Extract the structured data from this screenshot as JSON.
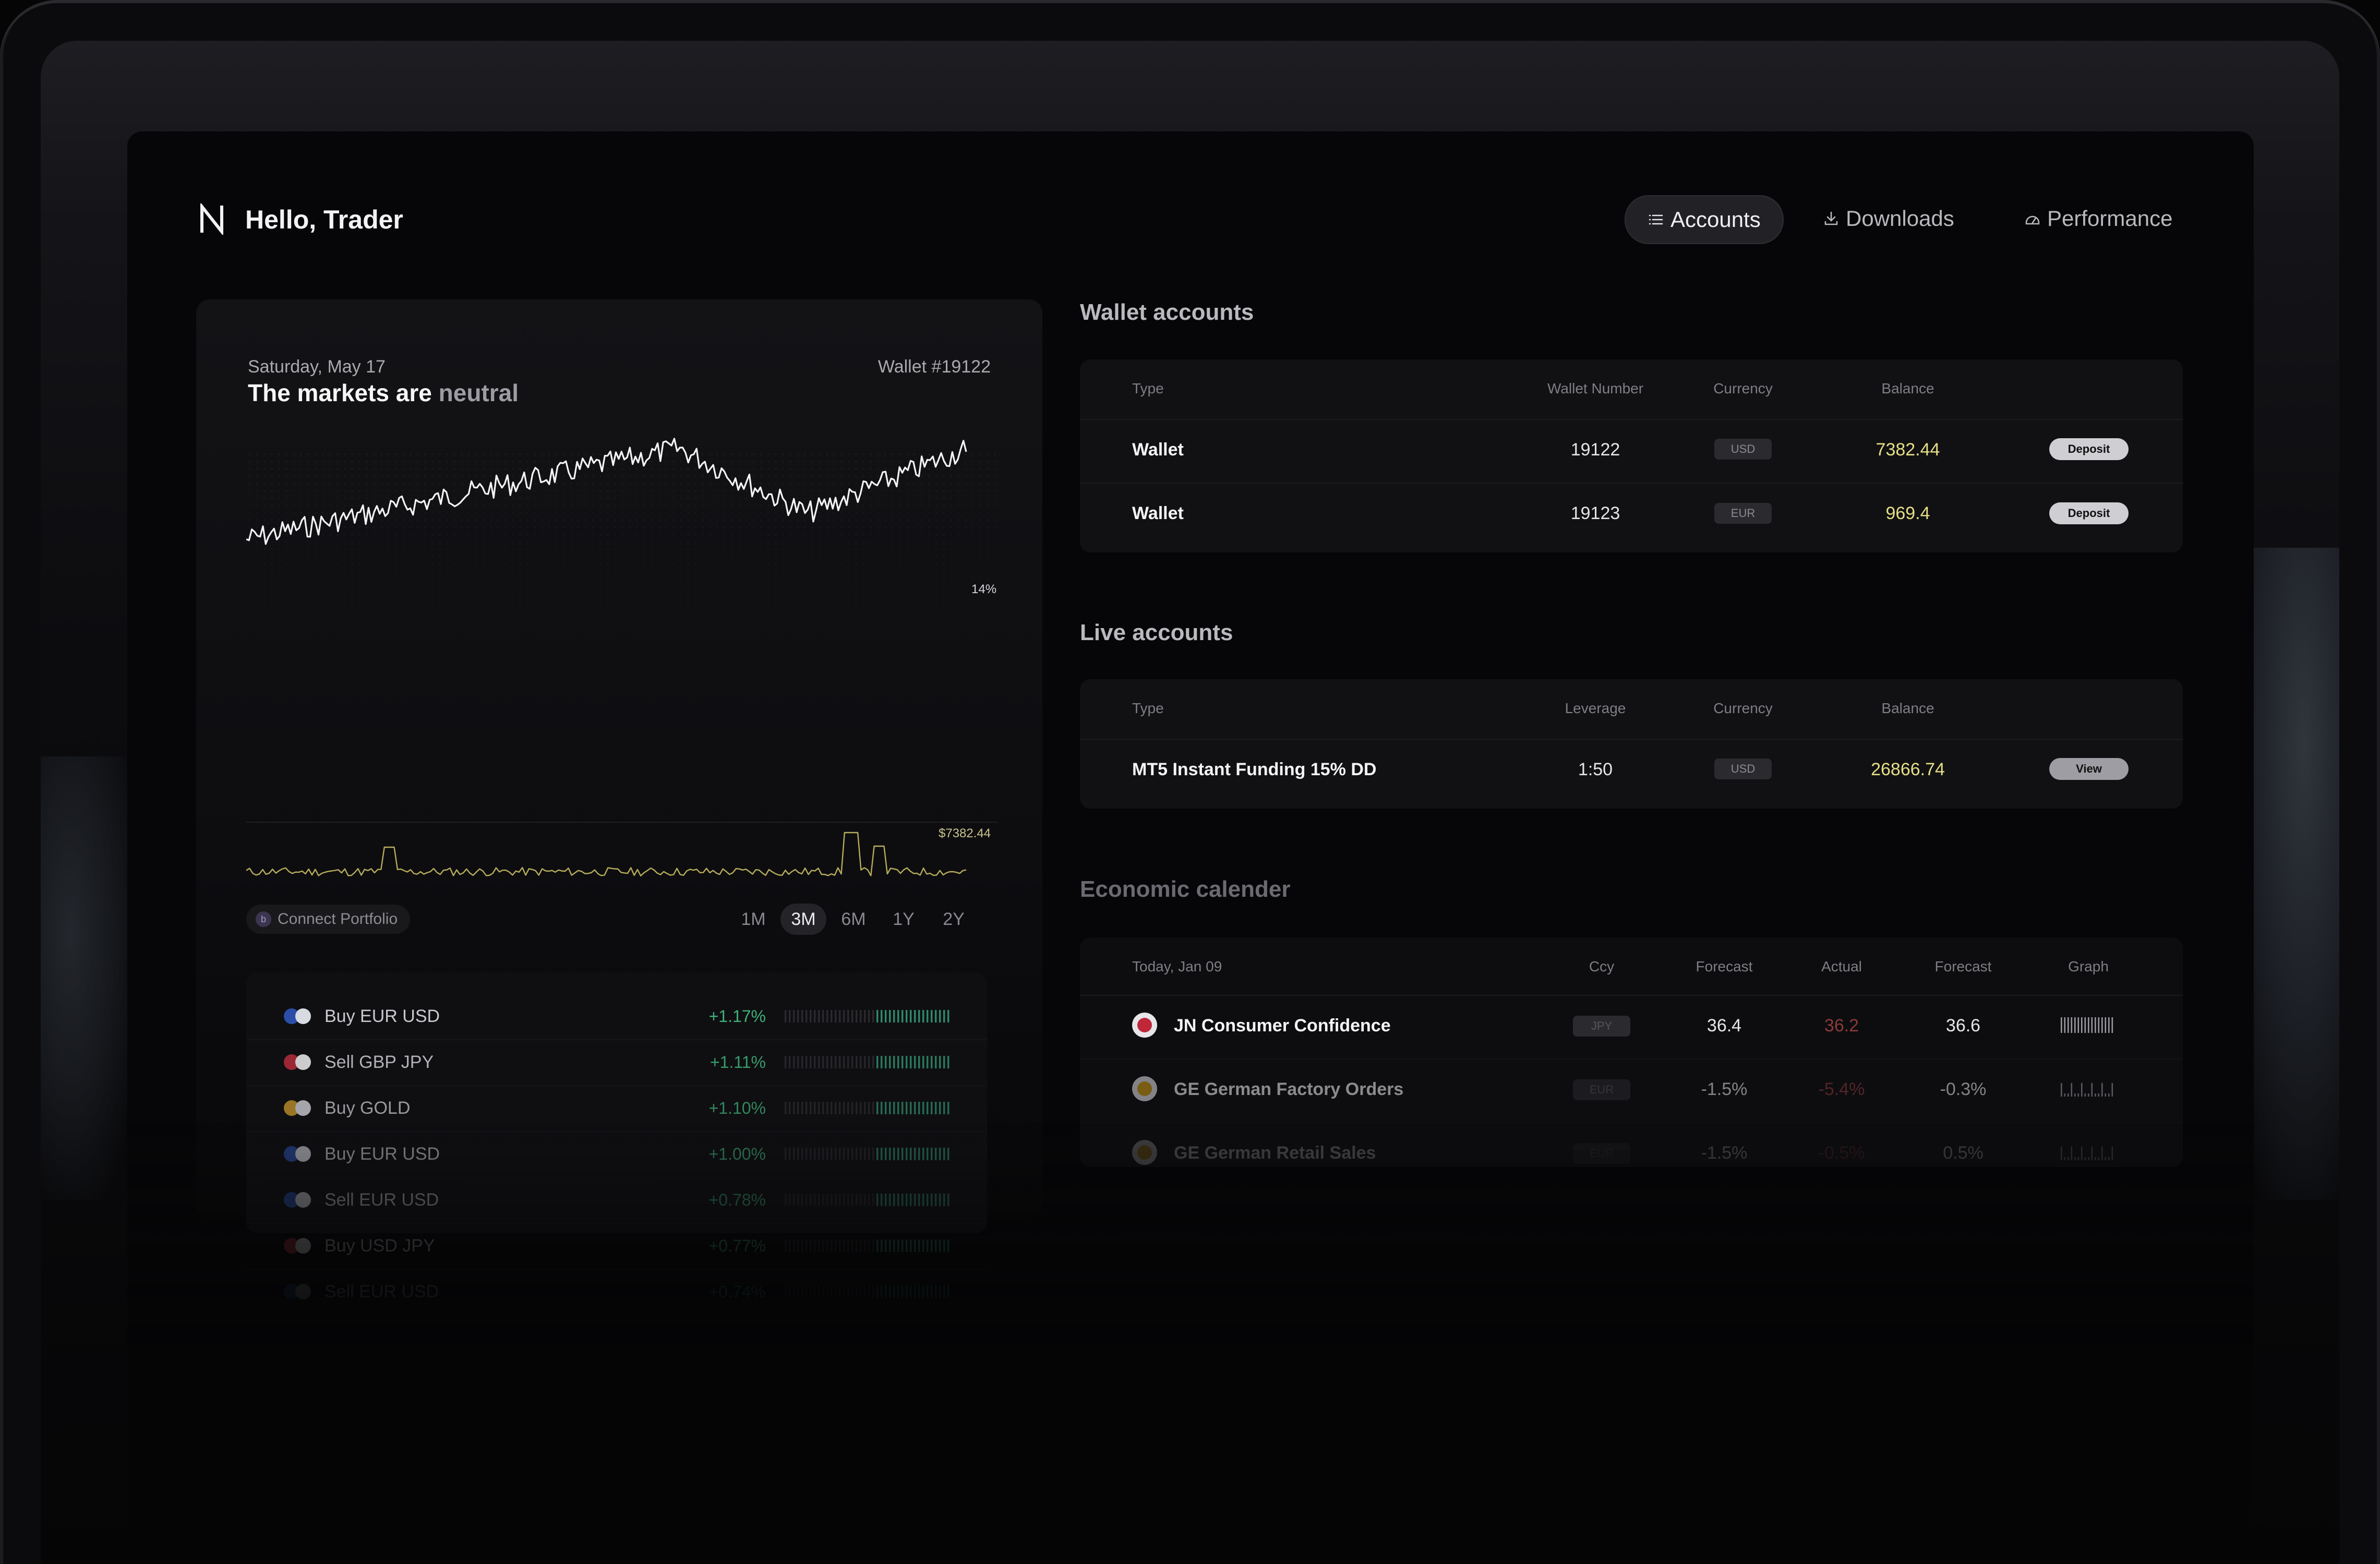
{
  "greeting": "Hello, Trader",
  "nav": [
    {
      "label": "Accounts",
      "icon": "list-icon",
      "active": true
    },
    {
      "label": "Downloads",
      "icon": "download-icon",
      "active": false
    },
    {
      "label": "Performance",
      "icon": "gauge-icon",
      "active": false
    }
  ],
  "overview": {
    "date": "Saturday, May 17",
    "wallet_id": "Wallet #19122",
    "market_prefix": "The markets are",
    "market_state": "neutral",
    "change_label": "14%",
    "volume_label": "$7382.44",
    "connect_label": "Connect Portfolio",
    "connect_icon": "portfolio-icon",
    "periods": [
      "1M",
      "3M",
      "6M",
      "1Y",
      "2Y"
    ],
    "active_period": "3M"
  },
  "signals": [
    {
      "name": "Buy EUR USD",
      "pct": "+1.17%",
      "flag_a": "#2b4fa8",
      "flag_b": "#d9dbe2"
    },
    {
      "name": "Sell GBP JPY",
      "pct": "+1.11%",
      "flag_a": "#b22b3a",
      "flag_b": "#e8e8ea"
    },
    {
      "name": "Buy GOLD",
      "pct": "+1.10%",
      "flag_a": "#c9992c",
      "flag_b": "#d9dbe2"
    },
    {
      "name": "Buy EUR USD",
      "pct": "+1.00%",
      "flag_a": "#2b4fa8",
      "flag_b": "#d9dbe2"
    },
    {
      "name": "Sell EUR USD",
      "pct": "+0.78%",
      "flag_a": "#2b4fa8",
      "flag_b": "#d9dbe2"
    },
    {
      "name": "Buy USD JPY",
      "pct": "+0.77%",
      "flag_a": "#b22b3a",
      "flag_b": "#e8e8ea"
    },
    {
      "name": "Sell EUR USD",
      "pct": "+0.74%",
      "flag_a": "#2b4fa8",
      "flag_b": "#d9dbe2"
    }
  ],
  "wallet_accounts": {
    "title": "Wallet accounts",
    "headers": [
      "Type",
      "Wallet Number",
      "Currency",
      "Balance"
    ],
    "rows": [
      {
        "type": "Wallet",
        "number": "19122",
        "currency": "USD",
        "balance": "7382.44",
        "action": "Deposit"
      },
      {
        "type": "Wallet",
        "number": "19123",
        "currency": "EUR",
        "balance": "969.4",
        "action": "Deposit"
      }
    ]
  },
  "live_accounts": {
    "title": "Live accounts",
    "headers": [
      "Type",
      "Leverage",
      "Currency",
      "Balance"
    ],
    "rows": [
      {
        "type": "MT5 Instant Funding 15% DD",
        "leverage": "1:50",
        "currency": "USD",
        "balance": "26866.74",
        "action": "View"
      }
    ]
  },
  "calendar": {
    "title": "Economic calender",
    "headers": [
      "Today, Jan 09",
      "Ccy",
      "Forecast",
      "Actual",
      "Forecast",
      "Graph"
    ],
    "rows": [
      {
        "event": "JN Consumer Confidence",
        "ccy": "JPY",
        "forecast": "36.4",
        "actual": "36.2",
        "forecast2": "36.6",
        "flag": "#c0283a"
      },
      {
        "event": "GE German Factory Orders",
        "ccy": "EUR",
        "forecast": "-1.5%",
        "actual": "-5.4%",
        "forecast2": "-0.3%",
        "flag": "#d4a017"
      },
      {
        "event": "GE German Retail Sales",
        "ccy": "EUR",
        "forecast": "-1.5%",
        "actual": "-0.5%",
        "forecast2": "0.5%",
        "flag": "#d4a017"
      }
    ]
  },
  "colors": {
    "accent_balance": "#e6df86",
    "positive": "#3fb078",
    "negative": "#c0504d",
    "volume_line": "#b7ad5a"
  }
}
